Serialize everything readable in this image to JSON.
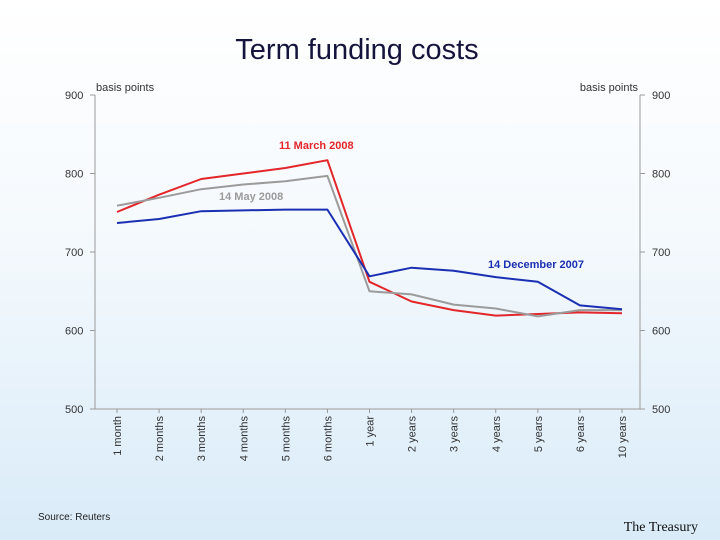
{
  "header": {
    "title": "Term funding costs"
  },
  "footer": {
    "source": "Source: Reuters",
    "brand": "The Treasury"
  },
  "chart_data": {
    "type": "line",
    "title": "Term funding costs",
    "ylabel_left": "basis points",
    "ylabel_right": "basis points",
    "ylim": [
      500,
      900
    ],
    "yticks": [
      500,
      600,
      700,
      800,
      900
    ],
    "grid": false,
    "categories": [
      "1 month",
      "2 months",
      "3 months",
      "4 months",
      "5 months",
      "6 months",
      "1 year",
      "2 years",
      "3 years",
      "4 years",
      "5 years",
      "6 years",
      "10 years"
    ],
    "series": [
      {
        "name": "11 March 2008",
        "color": "#e3262a",
        "values": [
          751,
          773,
          793,
          800,
          807,
          817,
          662,
          637,
          626,
          619,
          621,
          623,
          622
        ]
      },
      {
        "name": "14 May 2008",
        "color": "#9b9b9b",
        "values": [
          759,
          769,
          780,
          786,
          790,
          797,
          650,
          646,
          633,
          628,
          618,
          626,
          626
        ]
      },
      {
        "name": "14 December 2007",
        "color": "#1b2fb3",
        "values": [
          737,
          742,
          752,
          753,
          754,
          754,
          669,
          680,
          676,
          668,
          662,
          632,
          627
        ]
      }
    ],
    "annotations": [
      {
        "text": "11 March 2008",
        "color": "#e3262a"
      },
      {
        "text": "14 May 2008",
        "color": "#9b9b9b"
      },
      {
        "text": "14 December 2007",
        "color": "#1b2fb3"
      }
    ]
  }
}
